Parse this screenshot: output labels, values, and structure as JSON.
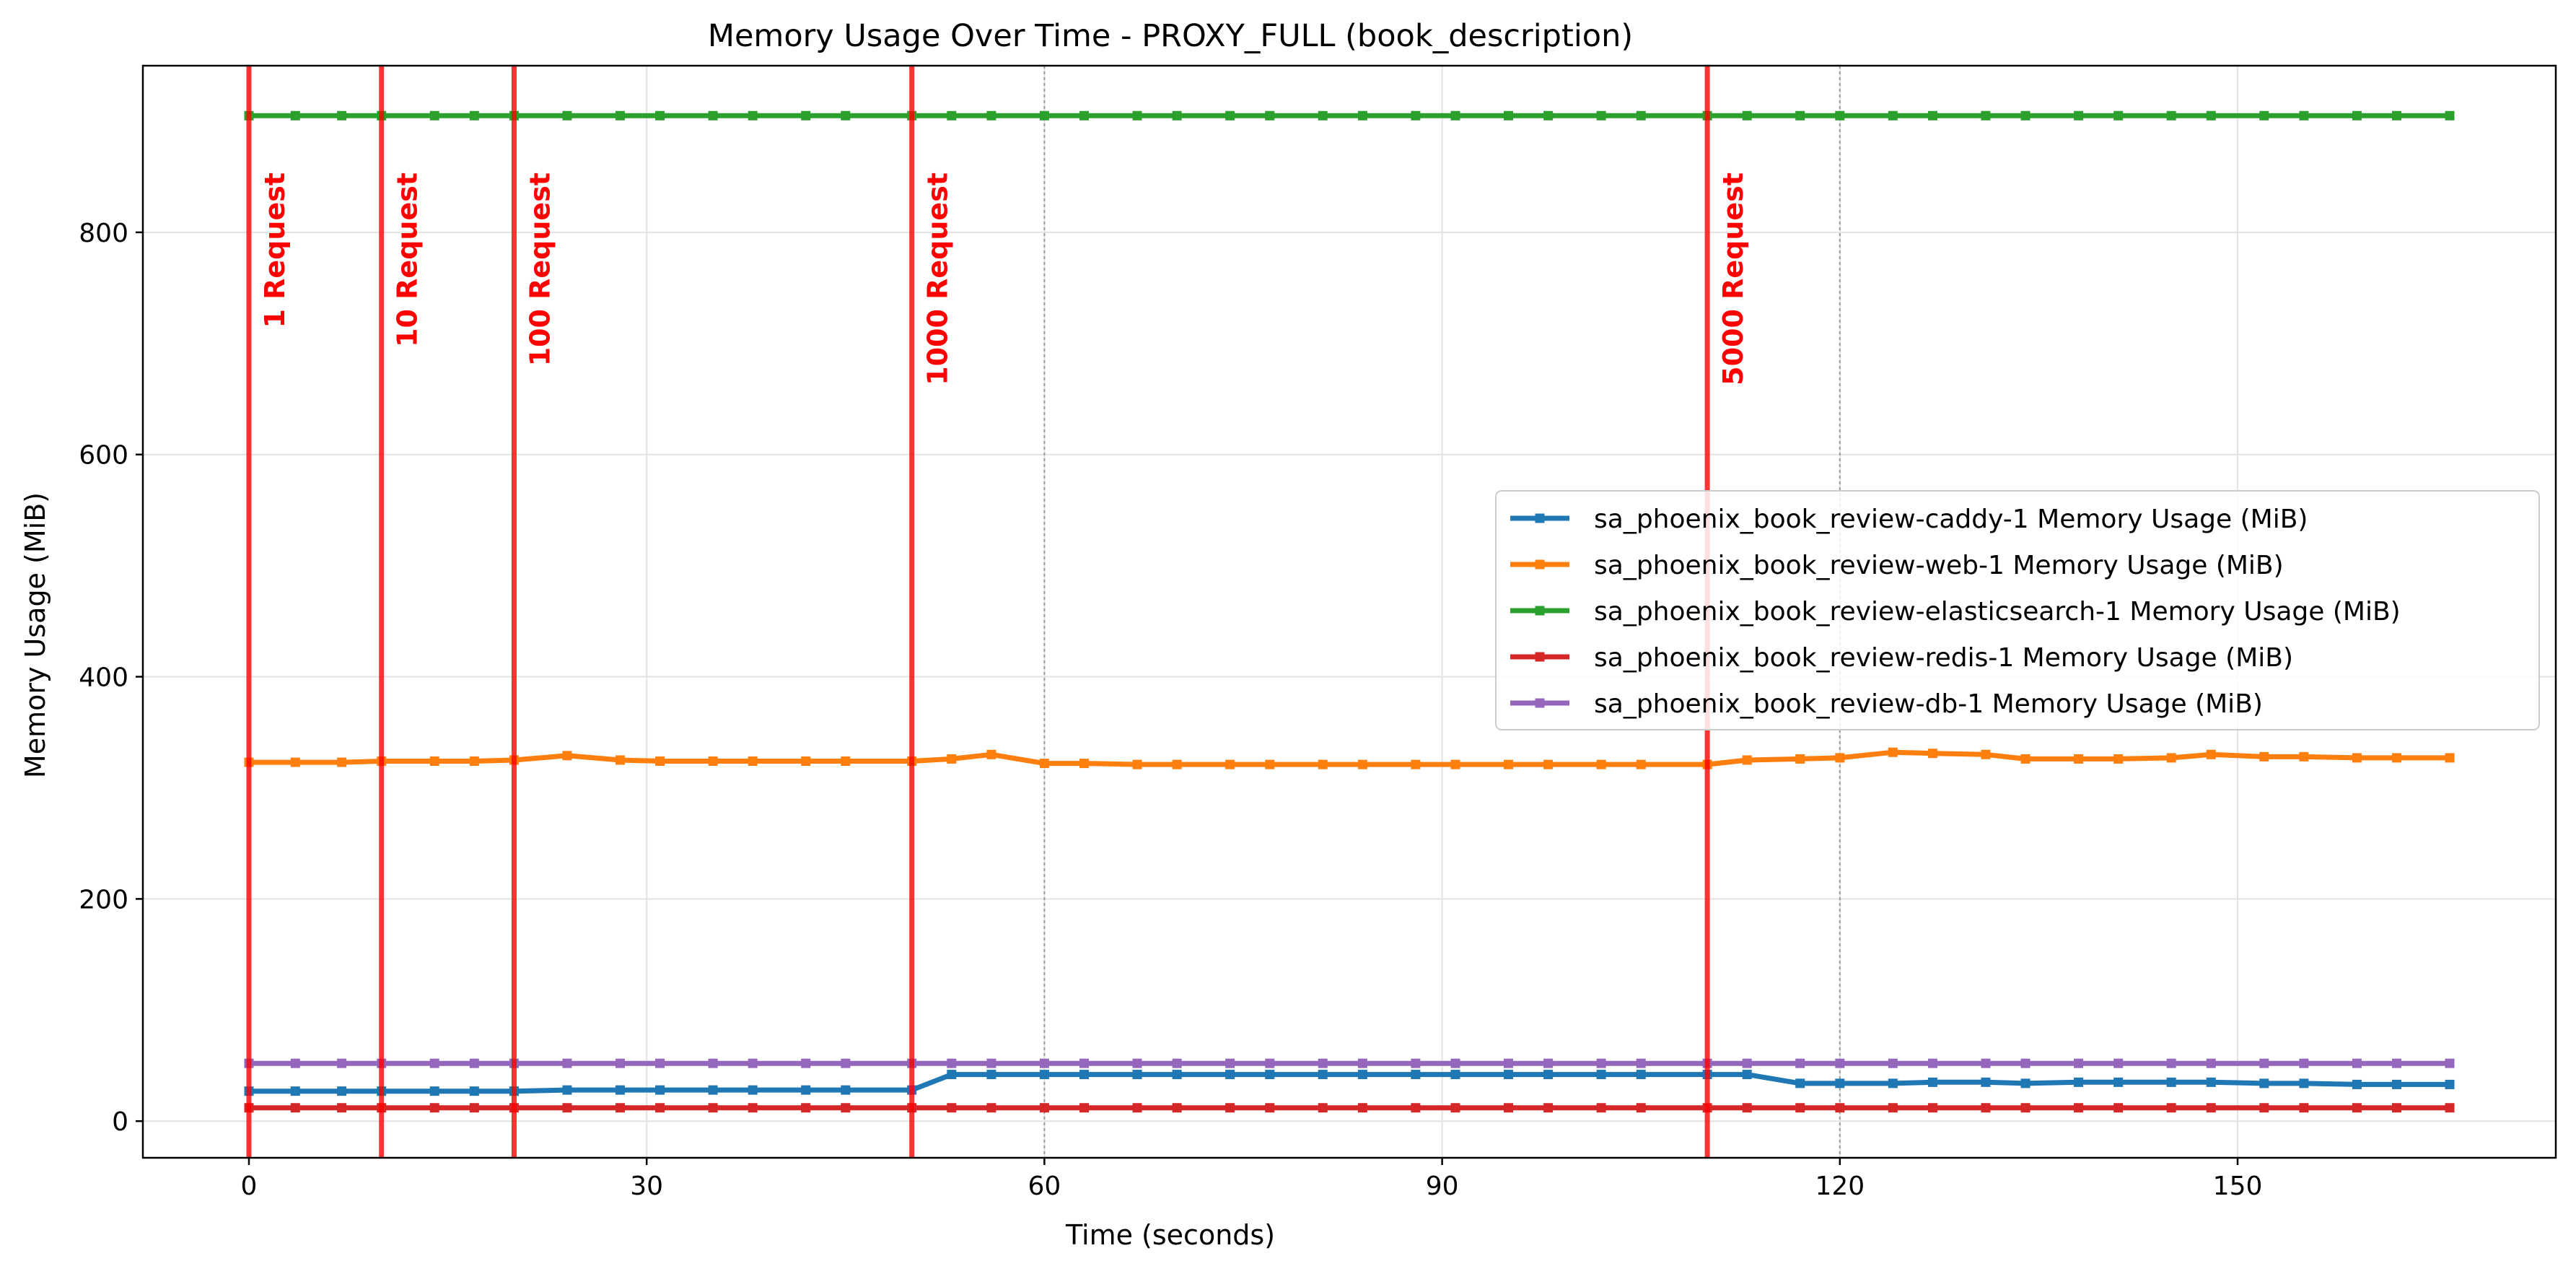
{
  "chart_data": {
    "type": "line",
    "title": "Memory Usage Over Time - PROXY_FULL (book_description)",
    "xlabel": "Time (seconds)",
    "ylabel": "Memory Usage (MiB)",
    "xlim": [
      -8,
      174
    ],
    "ylim": [
      -33,
      950
    ],
    "xticks": [
      0,
      30,
      60,
      90,
      120,
      150
    ],
    "yticks": [
      0,
      200,
      400,
      600,
      800
    ],
    "grid": true,
    "legend_position": "center-right",
    "x": [
      0,
      3.5,
      7,
      10,
      14,
      17,
      20,
      24,
      28,
      31,
      35,
      38,
      42,
      45,
      50,
      53,
      56,
      60,
      63,
      67,
      70,
      74,
      77,
      81,
      84,
      88,
      91,
      95,
      98,
      102,
      105,
      110,
      113,
      117,
      120,
      124,
      127,
      131,
      134,
      138,
      141,
      145,
      148,
      152,
      155,
      159,
      162,
      166
    ],
    "series": [
      {
        "name": "sa_phoenix_book_review-caddy-1 Memory Usage (MiB)",
        "color": "#1f77b4",
        "values": [
          27,
          27,
          27,
          27,
          27,
          27,
          27,
          28,
          28,
          28,
          28,
          28,
          28,
          28,
          28,
          42,
          42,
          42,
          42,
          42,
          42,
          42,
          42,
          42,
          42,
          42,
          42,
          42,
          42,
          42,
          42,
          42,
          42,
          34,
          34,
          34,
          35,
          35,
          34,
          35,
          35,
          35,
          35,
          34,
          34,
          33,
          33,
          33
        ]
      },
      {
        "name": "sa_phoenix_book_review-web-1 Memory Usage (MiB)",
        "color": "#ff7f0e",
        "values": [
          323,
          323,
          323,
          324,
          324,
          324,
          325,
          329,
          325,
          324,
          324,
          324,
          324,
          324,
          324,
          326,
          330,
          322,
          322,
          321,
          321,
          321,
          321,
          321,
          321,
          321,
          321,
          321,
          321,
          321,
          321,
          321,
          325,
          326,
          327,
          332,
          331,
          330,
          326,
          326,
          326,
          327,
          330,
          328,
          328,
          327,
          327,
          327
        ]
      },
      {
        "name": "sa_phoenix_book_review-elasticsearch-1 Memory Usage (MiB)",
        "color": "#2ca02c",
        "values": [
          905,
          905,
          905,
          905,
          905,
          905,
          905,
          905,
          905,
          905,
          905,
          905,
          905,
          905,
          905,
          905,
          905,
          905,
          905,
          905,
          905,
          905,
          905,
          905,
          905,
          905,
          905,
          905,
          905,
          905,
          905,
          905,
          905,
          905,
          905,
          905,
          905,
          905,
          905,
          905,
          905,
          905,
          905,
          905,
          905,
          905,
          905,
          905
        ]
      },
      {
        "name": "sa_phoenix_book_review-redis-1 Memory Usage (MiB)",
        "color": "#d62728",
        "values": [
          12,
          12,
          12,
          12,
          12,
          12,
          12,
          12,
          12,
          12,
          12,
          12,
          12,
          12,
          12,
          12,
          12,
          12,
          12,
          12,
          12,
          12,
          12,
          12,
          12,
          12,
          12,
          12,
          12,
          12,
          12,
          12,
          12,
          12,
          12,
          12,
          12,
          12,
          12,
          12,
          12,
          12,
          12,
          12,
          12,
          12,
          12,
          12
        ]
      },
      {
        "name": "sa_phoenix_book_review-db-1 Memory Usage (MiB)",
        "color": "#9467bd",
        "values": [
          52,
          52,
          52,
          52,
          52,
          52,
          52,
          52,
          52,
          52,
          52,
          52,
          52,
          52,
          52,
          52,
          52,
          52,
          52,
          52,
          52,
          52,
          52,
          52,
          52,
          52,
          52,
          52,
          52,
          52,
          52,
          52,
          52,
          52,
          52,
          52,
          52,
          52,
          52,
          52,
          52,
          52,
          52,
          52,
          52,
          52,
          52,
          52
        ]
      }
    ],
    "markers": [
      {
        "x": 0,
        "label": "1 Request"
      },
      {
        "x": 10,
        "label": "10 Request"
      },
      {
        "x": 20,
        "label": "100 Request"
      },
      {
        "x": 50,
        "label": "1000 Request"
      },
      {
        "x": 110,
        "label": "5000 Request"
      }
    ],
    "marker_color": "#ff0000",
    "dotted_vlines": [
      60,
      120
    ]
  }
}
